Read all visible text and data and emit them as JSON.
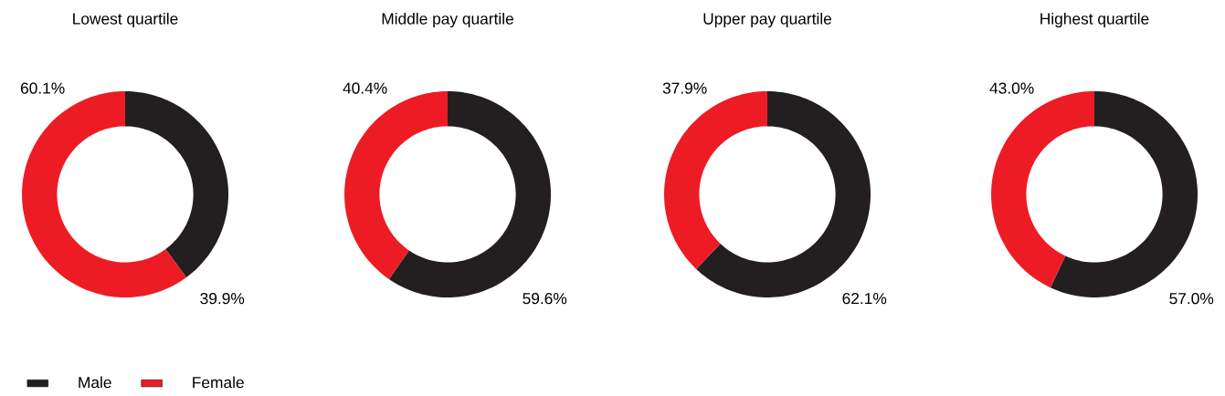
{
  "chart_data": [
    {
      "type": "donut",
      "title": "Lowest quartile",
      "categories": [
        "Male",
        "Female"
      ],
      "values": [
        39.9,
        60.1
      ],
      "value_labels": [
        "39.9%",
        "60.1%"
      ],
      "colors": [
        "#231f20",
        "#ed1c24"
      ],
      "legend": "bottom"
    },
    {
      "type": "donut",
      "title": "Middle pay quartile",
      "values": [
        59.6,
        40.4
      ],
      "value_labels": [
        "59.6%",
        "40.4%"
      ],
      "colors": [
        "#231f20",
        "#ed1c24"
      ]
    },
    {
      "type": "donut",
      "title": "Upper pay quartile",
      "values": [
        62.1,
        37.9
      ],
      "value_labels": [
        "62.1%",
        "37.9%"
      ],
      "colors": [
        "#231f20",
        "#ed1c24"
      ]
    },
    {
      "type": "donut",
      "title": "Highest quartile",
      "values": [
        57.0,
        43.0
      ],
      "value_labels": [
        "57.0%",
        "43.0%"
      ],
      "colors": [
        "#231f20",
        "#ed1c24"
      ]
    }
  ]
}
